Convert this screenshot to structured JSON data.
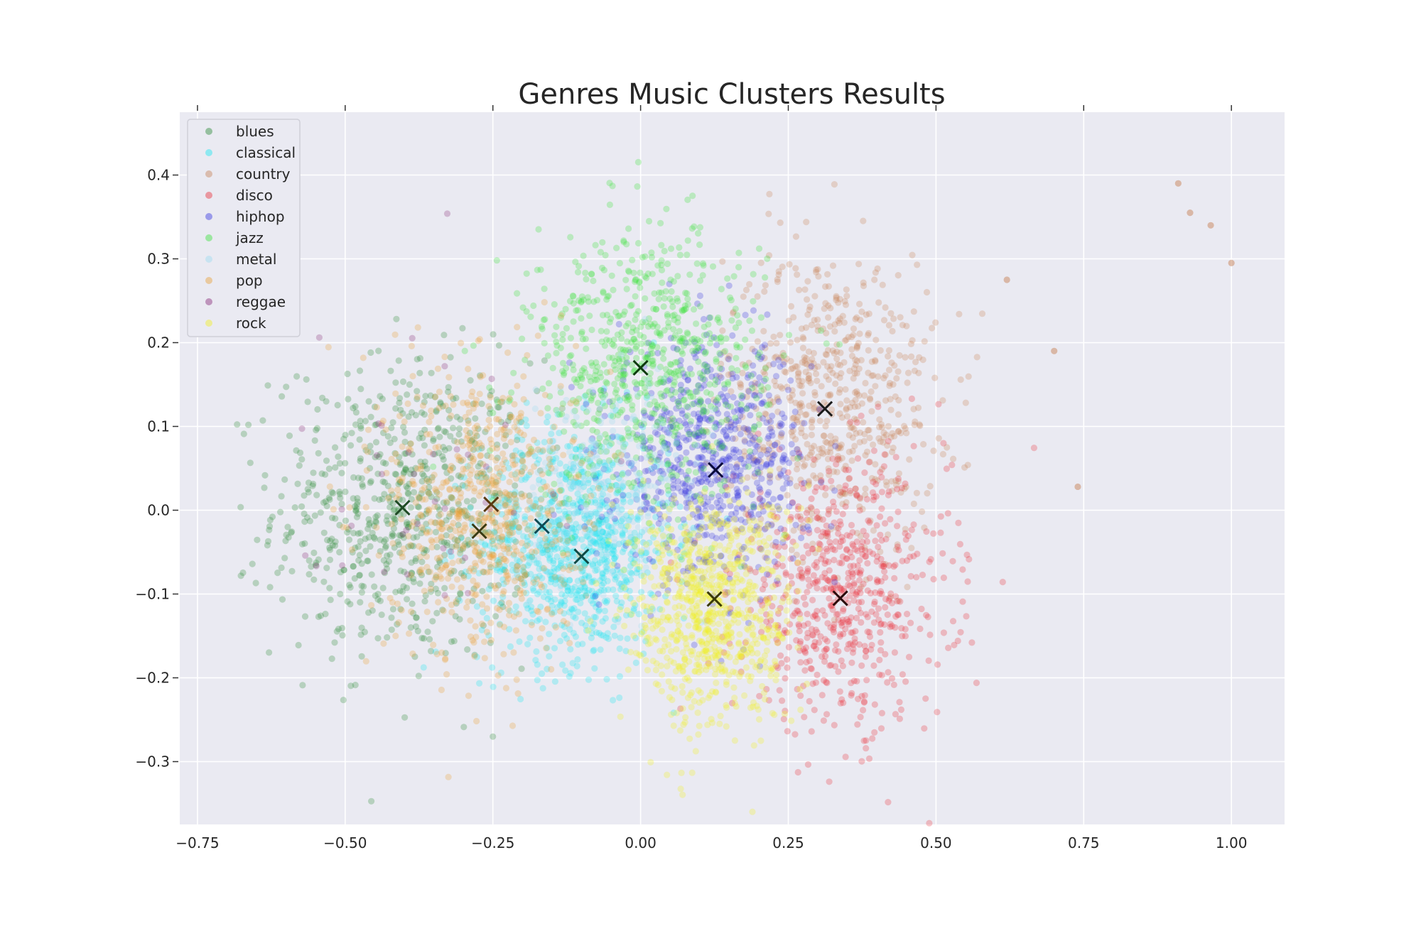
{
  "chart_data": {
    "type": "scatter",
    "title": "Genres Music Clusters Results",
    "xlabel": "",
    "ylabel": "",
    "xlim": [
      -0.78,
      1.09
    ],
    "ylim": [
      -0.375,
      0.475
    ],
    "x_ticks": [
      -0.75,
      -0.5,
      -0.25,
      0.0,
      0.25,
      0.5,
      0.75,
      1.0
    ],
    "x_tick_labels": [
      "−0.75",
      "−0.50",
      "−0.25",
      "0.00",
      "0.25",
      "0.50",
      "0.75",
      "1.00"
    ],
    "y_ticks": [
      -0.3,
      -0.2,
      -0.1,
      0.0,
      0.1,
      0.2,
      0.3,
      0.4
    ],
    "y_tick_labels": [
      "−0.3",
      "−0.2",
      "−0.1",
      "0.0",
      "0.1",
      "0.2",
      "0.3",
      "0.4"
    ],
    "grid": true,
    "legend_position": "top-left",
    "series": [
      {
        "name": "blues",
        "color": "#2e8b3a",
        "center": [
          -0.4,
          0.0
        ],
        "spread": [
          0.11,
          0.09
        ],
        "count": 700
      },
      {
        "name": "classical",
        "color": "#1ee6f0",
        "center": [
          -0.11,
          -0.04
        ],
        "spread": [
          0.08,
          0.07
        ],
        "count": 900
      },
      {
        "name": "country",
        "color": "#c8845a",
        "center": [
          0.32,
          0.13
        ],
        "spread": [
          0.09,
          0.09
        ],
        "count": 650
      },
      {
        "name": "disco",
        "color": "#e8323c",
        "center": [
          0.34,
          -0.1
        ],
        "spread": [
          0.09,
          0.08
        ],
        "count": 650
      },
      {
        "name": "hiphop",
        "color": "#3a3ae0",
        "center": [
          0.12,
          0.06
        ],
        "spread": [
          0.08,
          0.07
        ],
        "count": 700
      },
      {
        "name": "jazz",
        "color": "#3ee23e",
        "center": [
          0.01,
          0.17
        ],
        "spread": [
          0.1,
          0.08
        ],
        "count": 750
      },
      {
        "name": "metal",
        "color": "#9fdcf0",
        "center": [
          -0.05,
          0.03
        ],
        "spread": [
          0.08,
          0.06
        ],
        "count": 300
      },
      {
        "name": "pop",
        "color": "#e8a23a",
        "center": [
          -0.27,
          0.0
        ],
        "spread": [
          0.08,
          0.09
        ],
        "count": 650
      },
      {
        "name": "reggae",
        "color": "#8a2d7a",
        "center": [
          -0.35,
          0.06
        ],
        "spread": [
          0.12,
          0.1
        ],
        "count": 40
      },
      {
        "name": "rock",
        "color": "#f2f025",
        "center": [
          0.12,
          -0.12
        ],
        "spread": [
          0.07,
          0.07
        ],
        "count": 800
      }
    ],
    "outliers": [
      {
        "x": 0.91,
        "y": 0.39,
        "color": "#c8845a"
      },
      {
        "x": 0.93,
        "y": 0.355,
        "color": "#c8845a"
      },
      {
        "x": 0.965,
        "y": 0.34,
        "color": "#c8845a"
      },
      {
        "x": 1.0,
        "y": 0.295,
        "color": "#c8845a"
      },
      {
        "x": 0.74,
        "y": 0.028,
        "color": "#c8845a"
      },
      {
        "x": 0.62,
        "y": 0.275,
        "color": "#c8845a"
      },
      {
        "x": 0.7,
        "y": 0.19,
        "color": "#c8845a"
      }
    ],
    "centroids": [
      {
        "x": -0.403,
        "y": 0.003,
        "color": "#1f4a25"
      },
      {
        "x": -0.253,
        "y": 0.007,
        "color": "#5a3a12"
      },
      {
        "x": -0.273,
        "y": -0.025,
        "color": "#3a3a12"
      },
      {
        "x": -0.167,
        "y": -0.019,
        "color": "#0f4a55"
      },
      {
        "x": -0.1,
        "y": -0.055,
        "color": "#0f4a45"
      },
      {
        "x": 0.0,
        "y": 0.17,
        "color": "#0f3a0f"
      },
      {
        "x": 0.127,
        "y": 0.048,
        "color": "#0a0a3a"
      },
      {
        "x": 0.125,
        "y": -0.106,
        "color": "#3a3a0a"
      },
      {
        "x": 0.312,
        "y": 0.121,
        "color": "#1a1a1a"
      },
      {
        "x": 0.338,
        "y": -0.105,
        "color": "#2a0a0a"
      }
    ]
  }
}
